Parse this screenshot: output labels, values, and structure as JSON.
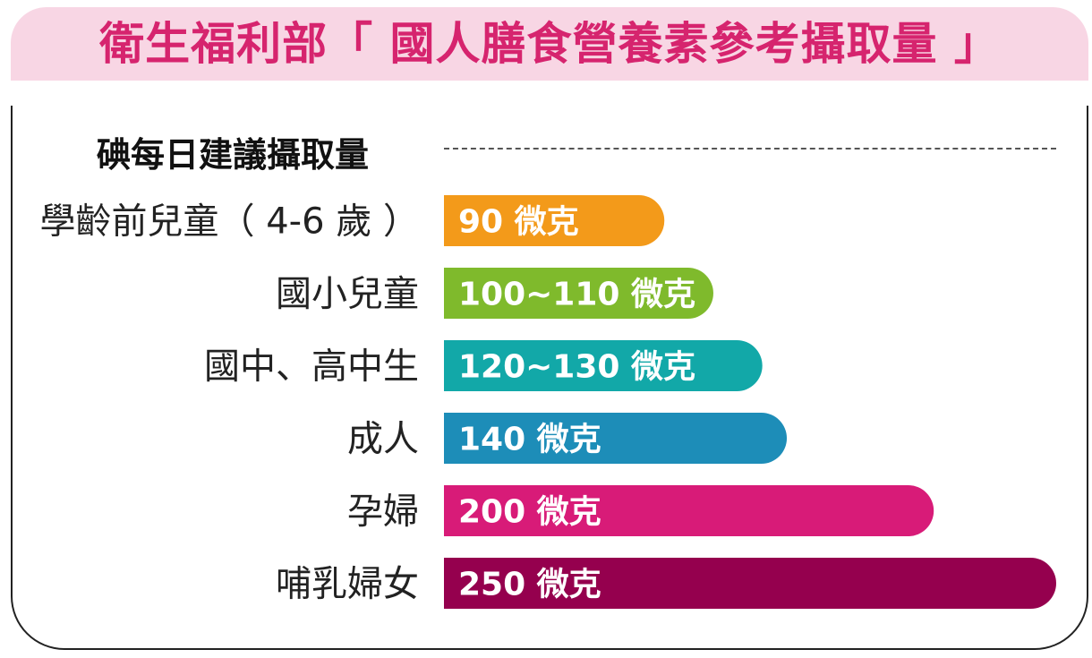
{
  "title": "衛生福利部「 國人膳食營養素參考攝取量 」",
  "chart_data": {
    "type": "bar",
    "orientation": "horizontal",
    "title": "碘每日建議攝取量",
    "unit": "微克",
    "categories": [
      "學齡前兒童（ 4-6 歲 ）",
      "國小兒童",
      "國中、高中生",
      "成人",
      "孕婦",
      "哺乳婦女"
    ],
    "values": [
      90,
      110,
      130,
      140,
      200,
      250
    ],
    "value_labels": [
      "90 微克",
      "100~110 微克",
      "120~130 微克",
      "140 微克",
      "200 微克",
      "250 微克"
    ],
    "colors": [
      "#f39a1a",
      "#7fba2c",
      "#12a8a8",
      "#1d8db8",
      "#d81b78",
      "#95004e"
    ],
    "xlim": [
      0,
      250
    ]
  }
}
